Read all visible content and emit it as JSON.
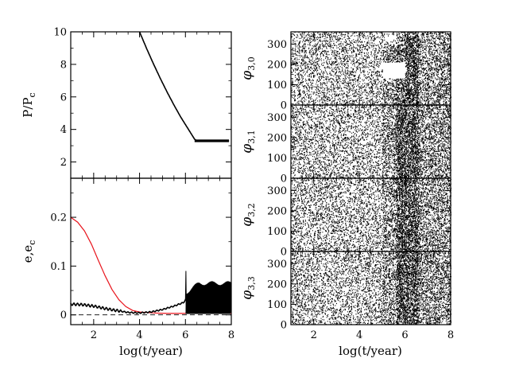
{
  "chart_data": [
    {
      "type": "line",
      "panel": "period-ratio",
      "xlabel": "",
      "ylabel": "P/P",
      "ylabel_sub": "c",
      "xlim": [
        1,
        8
      ],
      "ylim": [
        1,
        10
      ],
      "xticks": [
        2,
        4,
        6,
        8
      ],
      "yticks": [
        2,
        4,
        6,
        8,
        10
      ],
      "series": [
        {
          "color": "#000000",
          "x": [
            4.0,
            4.3,
            4.6,
            4.9,
            5.2,
            5.5,
            5.8,
            6.0,
            6.2,
            6.4,
            6.5,
            6.7,
            7.0,
            7.3,
            7.6,
            7.9
          ],
          "y": [
            10.0,
            9.0,
            8.05,
            7.15,
            6.3,
            5.5,
            4.75,
            4.3,
            3.85,
            3.4,
            3.3,
            3.3,
            3.3,
            3.3,
            3.3,
            3.3
          ]
        }
      ]
    },
    {
      "type": "line",
      "panel": "eccentricity",
      "xlabel": "log(t/year)",
      "ylabel": "e,e",
      "ylabel_sub": "c",
      "xlim": [
        1,
        8
      ],
      "ylim": [
        -0.02,
        0.28
      ],
      "xticks": [
        2,
        4,
        6,
        8
      ],
      "yticks": [
        0,
        0.1,
        0.2
      ],
      "series": [
        {
          "color": "#e8141c",
          "x": [
            1.0,
            1.3,
            1.6,
            1.9,
            2.2,
            2.5,
            2.8,
            3.1,
            3.4,
            3.7,
            4.0,
            4.3,
            4.6,
            4.9,
            5.2,
            5.5,
            5.8,
            6.1,
            6.4,
            6.7,
            7.0,
            7.5,
            8.0
          ],
          "y": [
            0.2,
            0.19,
            0.172,
            0.145,
            0.112,
            0.08,
            0.052,
            0.031,
            0.017,
            0.009,
            0.006,
            0.005,
            0.004,
            0.0035,
            0.003,
            0.003,
            0.003,
            0.003,
            0.003,
            0.003,
            0.003,
            0.003,
            0.003
          ]
        },
        {
          "color": "#000000",
          "x": [
            1.0,
            1.5,
            2.0,
            2.5,
            3.0,
            3.5,
            4.0,
            4.5,
            5.0,
            5.5,
            5.9,
            6.0
          ],
          "y": [
            0.022,
            0.021,
            0.018,
            0.013,
            0.009,
            0.005,
            0.004,
            0.006,
            0.011,
            0.018,
            0.025,
            0.03
          ]
        },
        {
          "color": "#000000",
          "name": "",
          "x": [
            6.0,
            8.0
          ],
          "y": [
            0.03,
            0.065
          ],
          "style": "oscillating band"
        }
      ],
      "reference_line": {
        "y": 0,
        "style": "dashed"
      }
    },
    {
      "type": "scatter",
      "panel": "resonant-angles",
      "xlabel": "log(t/year)",
      "xlim": [
        1,
        8
      ],
      "ylim": [
        0,
        360
      ],
      "xticks": [
        2,
        4,
        6,
        8
      ],
      "yticks": [
        0,
        100,
        200,
        300
      ],
      "subpanels": [
        {
          "ylabel": "φ",
          "ylabel_sub": "3,0"
        },
        {
          "ylabel": "φ",
          "ylabel_sub": "3,1"
        },
        {
          "ylabel": "φ",
          "ylabel_sub": "3,2"
        },
        {
          "ylabel": "φ",
          "ylabel_sub": "3,3"
        }
      ],
      "note_density": "uniform random 0-360 throughout; denser for log t > 5"
    }
  ]
}
